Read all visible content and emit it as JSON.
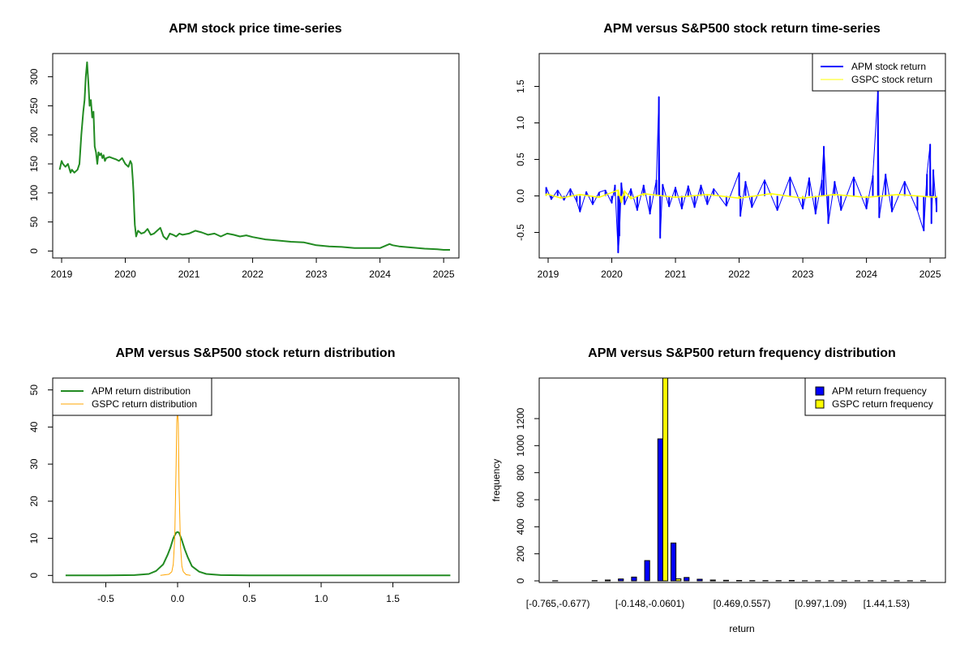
{
  "chart_data": [
    {
      "type": "line",
      "title": "APM stock price time-series",
      "xlabel": "",
      "ylabel": "",
      "x_ticks": [
        "2019",
        "2020",
        "2021",
        "2022",
        "2023",
        "2024",
        "2025"
      ],
      "y_ticks": [
        "0",
        "50",
        "100",
        "150",
        "200",
        "250",
        "300"
      ],
      "xlim": [
        2018.86,
        2025.24
      ],
      "ylim": [
        -12,
        340
      ],
      "colors": {
        "series": "#228B22"
      },
      "series": [
        {
          "x": [
            2018.97,
            2019.0,
            2019.02,
            2019.06,
            2019.1,
            2019.14,
            2019.16,
            2019.2,
            2019.25,
            2019.28,
            2019.31,
            2019.34,
            2019.36,
            2019.38,
            2019.4,
            2019.42,
            2019.44,
            2019.46,
            2019.48,
            2019.5,
            2019.52,
            2019.54,
            2019.56,
            2019.58,
            2019.6,
            2019.62,
            2019.64,
            2019.66,
            2019.68,
            2019.7,
            2019.75,
            2019.8,
            2019.85,
            2019.9,
            2019.95,
            2020.0,
            2020.05,
            2020.08,
            2020.1,
            2020.12,
            2020.13,
            2020.14,
            2020.15,
            2020.17,
            2020.2,
            2020.25,
            2020.3,
            2020.35,
            2020.4,
            2020.45,
            2020.5,
            2020.55,
            2020.6,
            2020.65,
            2020.7,
            2020.75,
            2020.8,
            2020.85,
            2020.9,
            2021.0,
            2021.1,
            2021.2,
            2021.3,
            2021.4,
            2021.5,
            2021.6,
            2021.7,
            2021.8,
            2021.9,
            2022.0,
            2022.2,
            2022.4,
            2022.6,
            2022.8,
            2023.0,
            2023.2,
            2023.4,
            2023.6,
            2023.8,
            2024.0,
            2024.15,
            2024.2,
            2024.3,
            2024.5,
            2024.7,
            2024.9,
            2025.0,
            2025.1
          ],
          "y": [
            140,
            155,
            150,
            145,
            150,
            135,
            140,
            135,
            140,
            150,
            200,
            240,
            260,
            300,
            325,
            290,
            250,
            260,
            230,
            240,
            180,
            170,
            150,
            170,
            165,
            168,
            160,
            165,
            155,
            160,
            162,
            160,
            158,
            155,
            160,
            150,
            145,
            155,
            150,
            120,
            100,
            70,
            45,
            25,
            35,
            30,
            32,
            38,
            28,
            30,
            35,
            40,
            25,
            20,
            30,
            28,
            25,
            30,
            28,
            30,
            35,
            32,
            28,
            30,
            25,
            30,
            28,
            25,
            27,
            24,
            20,
            18,
            16,
            15,
            10,
            8,
            7,
            5,
            5,
            5,
            12,
            10,
            8,
            6,
            4,
            3,
            2,
            2
          ]
        }
      ]
    },
    {
      "type": "line",
      "title": "APM versus S&P500 stock return time-series",
      "xlabel": "",
      "ylabel": "",
      "x_ticks": [
        "2019",
        "2020",
        "2021",
        "2022",
        "2023",
        "2024",
        "2025"
      ],
      "y_ticks": [
        "-0.5",
        "0.0",
        "0.5",
        "1.0",
        "1.5"
      ],
      "xlim": [
        2018.86,
        2025.24
      ],
      "ylim": [
        -0.85,
        1.95
      ],
      "legend_position": "top-right",
      "colors": {
        "APM": "#0000FF",
        "GSPC": "#FFFF00"
      },
      "legend": [
        "APM stock return",
        "GSPC stock return"
      ],
      "series": [
        {
          "name": "APM stock return",
          "x": [
            2018.97,
            2019.05,
            2019.15,
            2019.25,
            2019.35,
            2019.45,
            2019.5,
            2019.6,
            2019.7,
            2019.8,
            2019.9,
            2020.0,
            2020.05,
            2020.1,
            2020.12,
            2020.15,
            2020.2,
            2020.3,
            2020.4,
            2020.5,
            2020.6,
            2020.7,
            2020.74,
            2020.76,
            2020.8,
            2020.9,
            2021.0,
            2021.1,
            2021.2,
            2021.3,
            2021.4,
            2021.5,
            2021.6,
            2021.8,
            2022.0,
            2022.02,
            2022.1,
            2022.2,
            2022.4,
            2022.6,
            2022.8,
            2023.0,
            2023.1,
            2023.2,
            2023.3,
            2023.33,
            2023.4,
            2023.5,
            2023.6,
            2023.8,
            2024.0,
            2024.1,
            2024.18,
            2024.2,
            2024.3,
            2024.4,
            2024.6,
            2024.8,
            2024.9,
            2024.95,
            2025.0,
            2025.02,
            2025.05,
            2025.1
          ],
          "y": [
            0.12,
            -0.05,
            0.08,
            -0.06,
            0.1,
            -0.08,
            -0.22,
            0.06,
            -0.12,
            0.05,
            0.08,
            -0.1,
            0.15,
            -0.78,
            -0.55,
            0.18,
            -0.12,
            0.1,
            -0.2,
            0.15,
            -0.25,
            0.22,
            1.36,
            -0.58,
            0.16,
            -0.15,
            0.12,
            -0.18,
            0.14,
            -0.16,
            0.15,
            -0.12,
            0.1,
            -0.14,
            0.32,
            -0.28,
            0.2,
            -0.16,
            0.22,
            -0.2,
            0.26,
            -0.18,
            0.25,
            -0.25,
            0.22,
            0.68,
            -0.38,
            0.2,
            -0.2,
            0.26,
            -0.18,
            0.28,
            1.45,
            -0.3,
            0.3,
            -0.22,
            0.2,
            -0.2,
            -0.48,
            0.3,
            0.71,
            -0.38,
            0.36,
            -0.22
          ]
        },
        {
          "name": "GSPC stock return",
          "x": [
            2018.97,
            2019.2,
            2019.5,
            2019.8,
            2020.1,
            2020.15,
            2020.2,
            2020.3,
            2020.5,
            2021.0,
            2021.5,
            2022.0,
            2022.5,
            2023.0,
            2023.5,
            2024.0,
            2024.5,
            2025.1
          ],
          "y": [
            0.03,
            -0.03,
            0.02,
            -0.02,
            0.08,
            -0.09,
            0.07,
            -0.04,
            0.03,
            -0.02,
            0.02,
            -0.03,
            0.03,
            -0.03,
            0.02,
            -0.02,
            0.02,
            -0.02
          ]
        }
      ]
    },
    {
      "type": "line",
      "title": "APM versus S&P500 stock return distribution",
      "xlabel": "",
      "ylabel": "",
      "x_ticks": [
        "-0.5",
        "0.0",
        "0.5",
        "1.0",
        "1.5"
      ],
      "y_ticks": [
        "0",
        "10",
        "20",
        "30",
        "40",
        "50"
      ],
      "xlim": [
        -0.87,
        1.96
      ],
      "ylim": [
        -1.9,
        53.2
      ],
      "legend_position": "top-left",
      "colors": {
        "APM": "#228B22",
        "GSPC": "#FFA500"
      },
      "legend": [
        "APM return distribution",
        "GSPC return distribution"
      ],
      "series": [
        {
          "name": "APM return distribution",
          "x": [
            -0.78,
            -0.5,
            -0.3,
            -0.2,
            -0.15,
            -0.1,
            -0.07,
            -0.05,
            -0.03,
            -0.01,
            0.0,
            0.01,
            0.03,
            0.05,
            0.07,
            0.1,
            0.15,
            0.2,
            0.3,
            0.5,
            1.0,
            1.5,
            1.9
          ],
          "y": [
            0,
            0,
            0.1,
            0.4,
            1.2,
            3.0,
            5.5,
            7.5,
            10.0,
            11.5,
            11.7,
            11.5,
            9.5,
            7.0,
            5.0,
            2.5,
            1.0,
            0.4,
            0.1,
            0,
            0,
            0,
            0
          ]
        },
        {
          "name": "GSPC return distribution",
          "x": [
            -0.12,
            -0.06,
            -0.04,
            -0.03,
            -0.02,
            -0.01,
            -0.005,
            0.0,
            0.005,
            0.01,
            0.02,
            0.03,
            0.04,
            0.06,
            0.09
          ],
          "y": [
            0,
            0.3,
            1.0,
            3.0,
            10.0,
            30.0,
            42.0,
            44.0,
            41.0,
            24.0,
            8.0,
            2.5,
            1.0,
            0.2,
            0
          ]
        }
      ]
    },
    {
      "type": "bar",
      "title": "APM versus S&P500 return frequency distribution",
      "xlabel": "return",
      "ylabel": "frequency",
      "y_ticks": [
        "0",
        "200",
        "400",
        "600",
        "800",
        "1000",
        "1200"
      ],
      "x_tick_labels": [
        "[-0.765,-0.677)",
        "[-0.148,-0.0601)",
        "[0.469,0.557)",
        "[0.997,1.09)",
        "[1.44,1.53)"
      ],
      "x_tick_label_bins": [
        0,
        7,
        14,
        20,
        25
      ],
      "ylim": [
        0,
        1500
      ],
      "legend_position": "top-right",
      "colors": {
        "APM": "#0000FF",
        "GSPC": "#FFFF00"
      },
      "legend": [
        "APM return frequency",
        "GSPC return frequency"
      ],
      "series": [
        {
          "name": "APM return frequency",
          "values": [
            1,
            0,
            0,
            2,
            6,
            14,
            28,
            150,
            1050,
            280,
            25,
            12,
            6,
            4,
            3,
            2,
            2,
            2,
            3,
            1,
            1,
            1,
            1,
            1,
            1,
            1,
            1,
            1,
            1
          ]
        },
        {
          "name": "GSPC return frequency",
          "values": [
            0,
            0,
            0,
            0,
            0,
            0,
            0,
            0,
            1500,
            15,
            0,
            0,
            0,
            0,
            0,
            0,
            0,
            0,
            0,
            0,
            0,
            0,
            0,
            0,
            0,
            0,
            0,
            0,
            0
          ]
        }
      ]
    }
  ]
}
